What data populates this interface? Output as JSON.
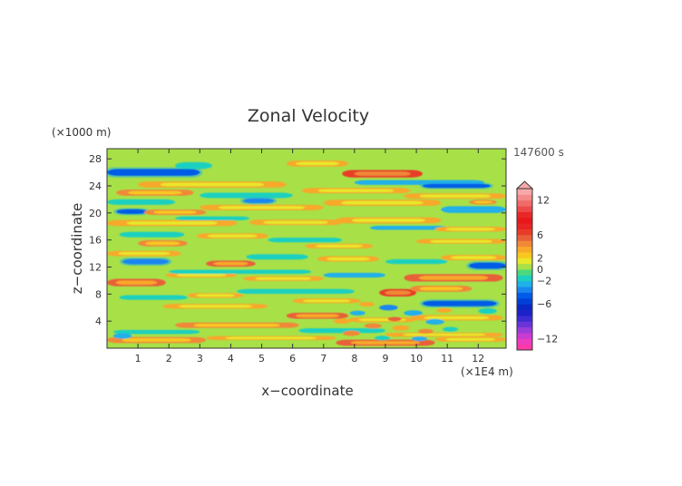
{
  "chart_data": {
    "type": "heatmap",
    "title": "Zonal Velocity",
    "xlabel": "x−coordinate",
    "ylabel": "z−coordinate",
    "x_unit": "(×1E4 m)",
    "y_unit": "(×1000 m)",
    "time_label": "147600 s",
    "xlim": [
      0,
      12.9
    ],
    "ylim": [
      0,
      29.5
    ],
    "x_ticks": [
      1,
      2,
      3,
      4,
      5,
      6,
      7,
      8,
      9,
      10,
      11,
      12
    ],
    "y_ticks": [
      4,
      8,
      12,
      16,
      20,
      24,
      28
    ],
    "background_value": 0.5,
    "bands": [
      {
        "x0": 0.0,
        "x1": 3.0,
        "z": 26.0,
        "dz": 0.5,
        "v": -5
      },
      {
        "x0": 2.2,
        "x1": 3.4,
        "z": 27.0,
        "dz": 0.5,
        "v": -2
      },
      {
        "x0": 5.8,
        "x1": 7.8,
        "z": 27.3,
        "dz": 0.45,
        "v": 3
      },
      {
        "x0": 7.6,
        "x1": 10.2,
        "z": 25.8,
        "dz": 0.55,
        "v": 6
      },
      {
        "x0": 8.0,
        "x1": 12.2,
        "z": 24.5,
        "dz": 0.35,
        "v": -3
      },
      {
        "x0": 10.2,
        "x1": 12.4,
        "z": 24.0,
        "dz": 0.3,
        "v": -5
      },
      {
        "x0": 1.0,
        "x1": 5.8,
        "z": 24.2,
        "dz": 0.45,
        "v": 3
      },
      {
        "x0": 0.3,
        "x1": 2.8,
        "z": 23.0,
        "dz": 0.45,
        "v": 4
      },
      {
        "x0": 3.0,
        "x1": 6.0,
        "z": 22.6,
        "dz": 0.4,
        "v": -2
      },
      {
        "x0": 4.4,
        "x1": 5.4,
        "z": 21.8,
        "dz": 0.35,
        "v": -4
      },
      {
        "x0": 6.3,
        "x1": 9.8,
        "z": 23.3,
        "dz": 0.4,
        "v": 3
      },
      {
        "x0": 9.6,
        "x1": 12.9,
        "z": 22.5,
        "dz": 0.4,
        "v": 3
      },
      {
        "x0": 0.0,
        "x1": 2.2,
        "z": 21.6,
        "dz": 0.4,
        "v": -2
      },
      {
        "x0": 0.3,
        "x1": 1.3,
        "z": 20.2,
        "dz": 0.35,
        "v": -5
      },
      {
        "x0": 1.2,
        "x1": 3.2,
        "z": 20.1,
        "dz": 0.4,
        "v": 4
      },
      {
        "x0": 3.0,
        "x1": 7.0,
        "z": 20.8,
        "dz": 0.4,
        "v": 3
      },
      {
        "x0": 7.0,
        "x1": 10.8,
        "z": 21.5,
        "dz": 0.45,
        "v": 3
      },
      {
        "x0": 10.8,
        "x1": 12.9,
        "z": 20.5,
        "dz": 0.5,
        "v": -3
      },
      {
        "x0": 11.7,
        "x1": 12.6,
        "z": 21.6,
        "dz": 0.35,
        "v": 4
      },
      {
        "x0": 0.0,
        "x1": 4.2,
        "z": 18.5,
        "dz": 0.45,
        "v": 3
      },
      {
        "x0": 2.2,
        "x1": 4.6,
        "z": 19.2,
        "dz": 0.3,
        "v": -2
      },
      {
        "x0": 4.6,
        "x1": 7.6,
        "z": 18.6,
        "dz": 0.4,
        "v": 3
      },
      {
        "x0": 7.4,
        "x1": 10.8,
        "z": 18.9,
        "dz": 0.45,
        "v": 3
      },
      {
        "x0": 8.5,
        "x1": 11.0,
        "z": 17.8,
        "dz": 0.3,
        "v": -3
      },
      {
        "x0": 10.6,
        "x1": 12.9,
        "z": 17.6,
        "dz": 0.35,
        "v": 3
      },
      {
        "x0": 0.4,
        "x1": 2.5,
        "z": 16.8,
        "dz": 0.4,
        "v": -2
      },
      {
        "x0": 1.0,
        "x1": 2.6,
        "z": 15.5,
        "dz": 0.45,
        "v": 4
      },
      {
        "x0": 2.9,
        "x1": 5.2,
        "z": 16.6,
        "dz": 0.4,
        "v": 3
      },
      {
        "x0": 5.2,
        "x1": 7.6,
        "z": 16.0,
        "dz": 0.35,
        "v": -2
      },
      {
        "x0": 6.4,
        "x1": 8.6,
        "z": 15.1,
        "dz": 0.35,
        "v": 3
      },
      {
        "x0": 10.0,
        "x1": 12.9,
        "z": 15.8,
        "dz": 0.35,
        "v": 3
      },
      {
        "x0": 0.0,
        "x1": 2.4,
        "z": 14.0,
        "dz": 0.4,
        "v": 3
      },
      {
        "x0": 0.5,
        "x1": 2.0,
        "z": 12.8,
        "dz": 0.4,
        "v": -4
      },
      {
        "x0": 3.2,
        "x1": 4.8,
        "z": 12.5,
        "dz": 0.45,
        "v": 5
      },
      {
        "x0": 4.5,
        "x1": 6.5,
        "z": 13.5,
        "dz": 0.4,
        "v": -2
      },
      {
        "x0": 6.8,
        "x1": 8.8,
        "z": 13.2,
        "dz": 0.4,
        "v": 3
      },
      {
        "x0": 9.0,
        "x1": 11.0,
        "z": 12.8,
        "dz": 0.35,
        "v": -2
      },
      {
        "x0": 10.8,
        "x1": 12.9,
        "z": 13.4,
        "dz": 0.4,
        "v": 3
      },
      {
        "x0": 11.7,
        "x1": 12.9,
        "z": 12.2,
        "dz": 0.45,
        "v": -5
      },
      {
        "x0": 0.0,
        "x1": 1.9,
        "z": 9.7,
        "dz": 0.55,
        "v": 5
      },
      {
        "x0": 1.9,
        "x1": 4.2,
        "z": 10.8,
        "dz": 0.35,
        "v": 3
      },
      {
        "x0": 2.0,
        "x1": 6.6,
        "z": 11.3,
        "dz": 0.3,
        "v": -2
      },
      {
        "x0": 4.4,
        "x1": 7.0,
        "z": 10.3,
        "dz": 0.35,
        "v": 3
      },
      {
        "x0": 7.0,
        "x1": 9.0,
        "z": 10.8,
        "dz": 0.35,
        "v": -3
      },
      {
        "x0": 9.6,
        "x1": 12.8,
        "z": 10.4,
        "dz": 0.55,
        "v": 5
      },
      {
        "x0": 8.8,
        "x1": 10.0,
        "z": 8.2,
        "dz": 0.55,
        "v": 6
      },
      {
        "x0": 9.8,
        "x1": 11.8,
        "z": 8.8,
        "dz": 0.45,
        "v": 4
      },
      {
        "x0": 10.2,
        "x1": 12.6,
        "z": 6.6,
        "dz": 0.4,
        "v": -5
      },
      {
        "x0": 2.6,
        "x1": 4.4,
        "z": 7.8,
        "dz": 0.35,
        "v": 3
      },
      {
        "x0": 4.2,
        "x1": 8.0,
        "z": 8.4,
        "dz": 0.35,
        "v": -2
      },
      {
        "x0": 0.4,
        "x1": 2.6,
        "z": 7.5,
        "dz": 0.35,
        "v": -2
      },
      {
        "x0": 1.8,
        "x1": 5.2,
        "z": 6.2,
        "dz": 0.35,
        "v": 3
      },
      {
        "x0": 6.0,
        "x1": 8.2,
        "z": 7.0,
        "dz": 0.35,
        "v": 3
      },
      {
        "x0": 5.8,
        "x1": 7.8,
        "z": 4.8,
        "dz": 0.45,
        "v": 5
      },
      {
        "x0": 7.8,
        "x1": 10.0,
        "z": 4.2,
        "dz": 0.35,
        "v": 3
      },
      {
        "x0": 9.8,
        "x1": 12.8,
        "z": 4.5,
        "dz": 0.4,
        "v": 3
      },
      {
        "x0": 2.2,
        "x1": 6.2,
        "z": 3.4,
        "dz": 0.4,
        "v": 4
      },
      {
        "x0": 0.2,
        "x1": 3.0,
        "z": 2.4,
        "dz": 0.3,
        "v": -2
      },
      {
        "x0": 6.2,
        "x1": 9.0,
        "z": 2.6,
        "dz": 0.35,
        "v": -2
      },
      {
        "x0": 9.0,
        "x1": 12.8,
        "z": 2.0,
        "dz": 0.3,
        "v": 3
      },
      {
        "x0": 0.0,
        "x1": 3.2,
        "z": 1.2,
        "dz": 0.45,
        "v": 4
      },
      {
        "x0": 3.2,
        "x1": 7.4,
        "z": 1.5,
        "dz": 0.3,
        "v": 3
      },
      {
        "x0": 7.4,
        "x1": 10.6,
        "z": 0.8,
        "dz": 0.45,
        "v": 5
      },
      {
        "x0": 10.6,
        "x1": 12.9,
        "z": 1.3,
        "dz": 0.35,
        "v": 3
      }
    ],
    "blobs": [
      {
        "x": 7.6,
        "z": 4.0,
        "r": 0.28,
        "v": 3
      },
      {
        "x": 8.1,
        "z": 5.2,
        "r": 0.25,
        "v": -3
      },
      {
        "x": 8.6,
        "z": 3.3,
        "r": 0.28,
        "v": 4
      },
      {
        "x": 9.1,
        "z": 6.0,
        "r": 0.3,
        "v": -4
      },
      {
        "x": 9.5,
        "z": 3.0,
        "r": 0.28,
        "v": 3
      },
      {
        "x": 9.9,
        "z": 5.2,
        "r": 0.3,
        "v": -3
      },
      {
        "x": 10.3,
        "z": 2.5,
        "r": 0.25,
        "v": 4
      },
      {
        "x": 10.6,
        "z": 3.9,
        "r": 0.3,
        "v": -3
      },
      {
        "x": 8.9,
        "z": 1.5,
        "r": 0.25,
        "v": -2
      },
      {
        "x": 8.4,
        "z": 6.5,
        "r": 0.25,
        "v": 3
      },
      {
        "x": 7.9,
        "z": 2.2,
        "r": 0.28,
        "v": 4
      },
      {
        "x": 11.1,
        "z": 2.8,
        "r": 0.25,
        "v": -2
      },
      {
        "x": 10.9,
        "z": 5.6,
        "r": 0.25,
        "v": 3
      },
      {
        "x": 9.3,
        "z": 4.3,
        "r": 0.22,
        "v": 5
      },
      {
        "x": 10.1,
        "z": 1.4,
        "r": 0.25,
        "v": -3
      },
      {
        "x": 12.3,
        "z": 5.5,
        "r": 0.3,
        "v": -2
      },
      {
        "x": 0.5,
        "z": 1.8,
        "r": 0.3,
        "v": -3
      }
    ],
    "colorbar": {
      "levels": [
        -14,
        -13,
        -12,
        -11,
        -10,
        -9,
        -8,
        -7,
        -6,
        -5,
        -4,
        -3,
        -2,
        -1,
        0,
        1,
        2,
        3,
        4,
        5,
        6,
        7,
        8,
        9,
        10,
        11,
        12,
        13,
        14
      ],
      "colors": [
        "#ff3aa6",
        "#ee3cc0",
        "#c83cd2",
        "#9a3cd8",
        "#6a34d8",
        "#3c2cd2",
        "#1c22c8",
        "#0a28c4",
        "#0040d6",
        "#005ce6",
        "#1a86f0",
        "#20b0e8",
        "#1cd0c0",
        "#4cd880",
        "#a8e048",
        "#e8e82a",
        "#f8c820",
        "#f8a82a",
        "#f08838",
        "#e86038",
        "#e83c28",
        "#e82424",
        "#e8181c",
        "#e82828",
        "#ec4a4a",
        "#f06a6a",
        "#f48a8a",
        "#f8a8a8"
      ],
      "tick_values": [
        12,
        6,
        2,
        0,
        -2,
        -6,
        -12
      ],
      "tick_labels": [
        "12",
        "6",
        "2",
        "0",
        "−2",
        "−6",
        "−12"
      ]
    }
  }
}
